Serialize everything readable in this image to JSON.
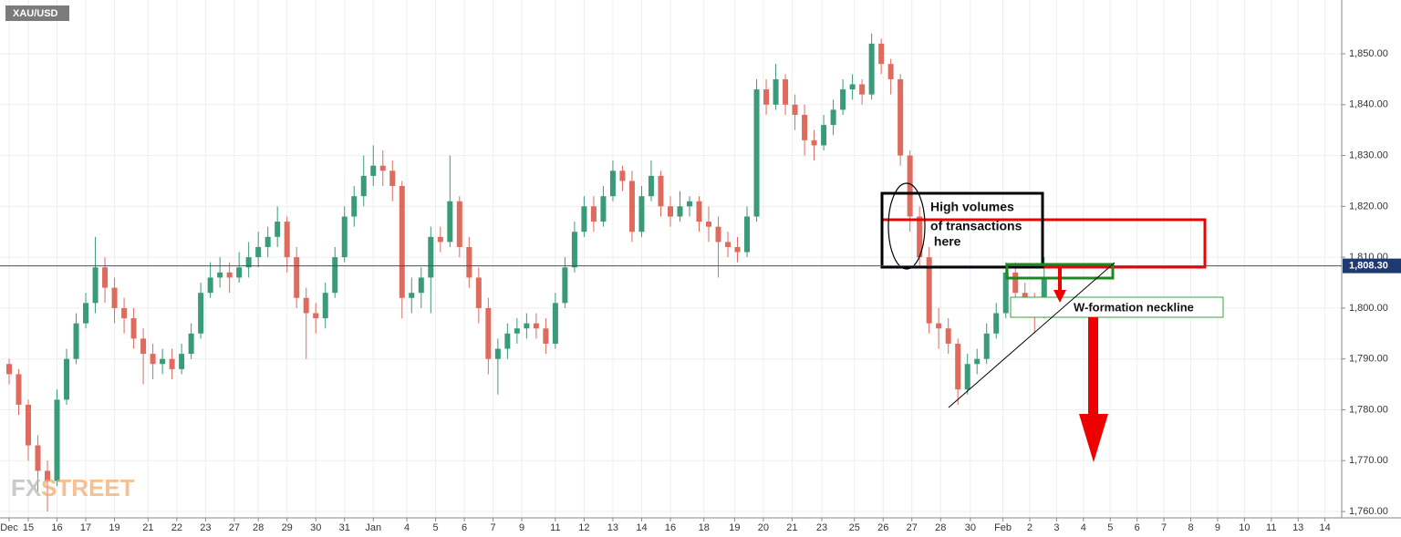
{
  "chart_data": {
    "type": "candlestick",
    "title": "XAU/USD",
    "watermark": [
      "FX",
      "STREET"
    ],
    "up_color": "#3a9b79",
    "down_color": "#de6b5e",
    "grid": true,
    "candles": [
      [
        1789,
        1790,
        1785,
        1787
      ],
      [
        1787,
        1788,
        1779,
        1781
      ],
      [
        1781,
        1782,
        1770,
        1773
      ],
      [
        1773,
        1775,
        1764,
        1768
      ],
      [
        1768,
        1770,
        1760,
        1766
      ],
      [
        1766,
        1784,
        1765,
        1782
      ],
      [
        1782,
        1792,
        1781,
        1790
      ],
      [
        1790,
        1799,
        1789,
        1797
      ],
      [
        1797,
        1803,
        1796,
        1801
      ],
      [
        1801,
        1814,
        1799,
        1808
      ],
      [
        1808,
        1810,
        1801,
        1804
      ],
      [
        1804,
        1806,
        1797,
        1800
      ],
      [
        1800,
        1802,
        1795,
        1798
      ],
      [
        1798,
        1800,
        1792,
        1794
      ],
      [
        1794,
        1796,
        1785,
        1791
      ],
      [
        1791,
        1793,
        1786,
        1789
      ],
      [
        1789,
        1792,
        1787,
        1790
      ],
      [
        1790,
        1792,
        1786,
        1788
      ],
      [
        1788,
        1793,
        1787,
        1791
      ],
      [
        1791,
        1797,
        1790,
        1795
      ],
      [
        1795,
        1805,
        1794,
        1803
      ],
      [
        1803,
        1809,
        1802,
        1806
      ],
      [
        1806,
        1810,
        1804,
        1807
      ],
      [
        1807,
        1809,
        1803,
        1806
      ],
      [
        1806,
        1811,
        1805,
        1808
      ],
      [
        1808,
        1813,
        1806,
        1810
      ],
      [
        1810,
        1815,
        1808,
        1812
      ],
      [
        1812,
        1816,
        1810,
        1814
      ],
      [
        1814,
        1820,
        1812,
        1817
      ],
      [
        1817,
        1818,
        1807,
        1810
      ],
      [
        1810,
        1812,
        1800,
        1802
      ],
      [
        1802,
        1804,
        1790,
        1799
      ],
      [
        1799,
        1801,
        1795,
        1798
      ],
      [
        1798,
        1805,
        1796,
        1803
      ],
      [
        1803,
        1812,
        1802,
        1810
      ],
      [
        1810,
        1820,
        1809,
        1818
      ],
      [
        1818,
        1824,
        1816,
        1822
      ],
      [
        1822,
        1830,
        1820,
        1826
      ],
      [
        1826,
        1832,
        1824,
        1828
      ],
      [
        1828,
        1831,
        1824,
        1827
      ],
      [
        1827,
        1829,
        1821,
        1824
      ],
      [
        1824,
        1825,
        1798,
        1802
      ],
      [
        1802,
        1806,
        1799,
        1803
      ],
      [
        1803,
        1808,
        1800,
        1806
      ],
      [
        1806,
        1816,
        1799,
        1814
      ],
      [
        1814,
        1816,
        1811,
        1813
      ],
      [
        1813,
        1830,
        1812,
        1821
      ],
      [
        1821,
        1822,
        1810,
        1812
      ],
      [
        1812,
        1814,
        1804,
        1806
      ],
      [
        1806,
        1808,
        1797,
        1800
      ],
      [
        1800,
        1802,
        1787,
        1790
      ],
      [
        1790,
        1794,
        1783,
        1792
      ],
      [
        1792,
        1797,
        1790,
        1795
      ],
      [
        1795,
        1798,
        1793,
        1796
      ],
      [
        1796,
        1799,
        1794,
        1797
      ],
      [
        1797,
        1799,
        1794,
        1796
      ],
      [
        1796,
        1798,
        1791,
        1793
      ],
      [
        1793,
        1803,
        1792,
        1801
      ],
      [
        1801,
        1810,
        1800,
        1808
      ],
      [
        1808,
        1817,
        1807,
        1815
      ],
      [
        1815,
        1822,
        1814,
        1820
      ],
      [
        1820,
        1822,
        1815,
        1817
      ],
      [
        1817,
        1824,
        1816,
        1822
      ],
      [
        1822,
        1829,
        1821,
        1827
      ],
      [
        1827,
        1828,
        1823,
        1825
      ],
      [
        1825,
        1827,
        1813,
        1815
      ],
      [
        1815,
        1824,
        1814,
        1822
      ],
      [
        1822,
        1829,
        1821,
        1826
      ],
      [
        1826,
        1827,
        1818,
        1820
      ],
      [
        1820,
        1822,
        1816,
        1818
      ],
      [
        1818,
        1823,
        1817,
        1820
      ],
      [
        1820,
        1822,
        1818,
        1821
      ],
      [
        1821,
        1822,
        1815,
        1817
      ],
      [
        1817,
        1820,
        1813,
        1816
      ],
      [
        1816,
        1818,
        1806,
        1813
      ],
      [
        1813,
        1815,
        1810,
        1812
      ],
      [
        1812,
        1814,
        1809,
        1811
      ],
      [
        1811,
        1820,
        1810,
        1818
      ],
      [
        1818,
        1845,
        1817,
        1843
      ],
      [
        1843,
        1845,
        1838,
        1840
      ],
      [
        1840,
        1848,
        1839,
        1845
      ],
      [
        1845,
        1846,
        1838,
        1840
      ],
      [
        1840,
        1842,
        1835,
        1838
      ],
      [
        1838,
        1840,
        1830,
        1833
      ],
      [
        1833,
        1835,
        1829,
        1832
      ],
      [
        1832,
        1838,
        1831,
        1836
      ],
      [
        1836,
        1841,
        1834,
        1839
      ],
      [
        1839,
        1845,
        1838,
        1843
      ],
      [
        1843,
        1846,
        1841,
        1844
      ],
      [
        1844,
        1845,
        1840,
        1842
      ],
      [
        1842,
        1854,
        1841,
        1852
      ],
      [
        1852,
        1853,
        1846,
        1848
      ],
      [
        1848,
        1849,
        1842,
        1845
      ],
      [
        1845,
        1846,
        1828,
        1830
      ],
      [
        1830,
        1831,
        1815,
        1818
      ],
      [
        1818,
        1820,
        1808,
        1810
      ],
      [
        1810,
        1812,
        1795,
        1797
      ],
      [
        1797,
        1800,
        1792,
        1796
      ],
      [
        1796,
        1798,
        1791,
        1793
      ],
      [
        1793,
        1794,
        1781,
        1784
      ],
      [
        1784,
        1791,
        1783,
        1789
      ],
      [
        1789,
        1792,
        1787,
        1790
      ],
      [
        1790,
        1797,
        1789,
        1795
      ],
      [
        1795,
        1801,
        1794,
        1799
      ],
      [
        1799,
        1809,
        1798,
        1807
      ],
      [
        1807,
        1809,
        1801,
        1803
      ],
      [
        1803,
        1805,
        1799,
        1801
      ],
      [
        1801,
        1803,
        1795,
        1799
      ],
      [
        1799,
        1810,
        1798,
        1806
      ]
    ],
    "xlim": [
      -0.95,
      139.05
    ],
    "xticks": [
      {
        "value": 0,
        "label": "Dec"
      },
      {
        "value": 2,
        "label": "15"
      },
      {
        "value": 5,
        "label": "16"
      },
      {
        "value": 8,
        "label": "17"
      },
      {
        "value": 11,
        "label": "19"
      },
      {
        "value": 14.5,
        "label": "21"
      },
      {
        "value": 17.5,
        "label": "22"
      },
      {
        "value": 20.5,
        "label": "23"
      },
      {
        "value": 23.5,
        "label": "27"
      },
      {
        "value": 26,
        "label": "28"
      },
      {
        "value": 29,
        "label": "29"
      },
      {
        "value": 32,
        "label": "30"
      },
      {
        "value": 35,
        "label": "31"
      },
      {
        "value": 38,
        "label": "Jan"
      },
      {
        "value": 41.5,
        "label": "4"
      },
      {
        "value": 44.5,
        "label": "5"
      },
      {
        "value": 47.5,
        "label": "6"
      },
      {
        "value": 50.5,
        "label": "7"
      },
      {
        "value": 53.5,
        "label": "9"
      },
      {
        "value": 57,
        "label": "11"
      },
      {
        "value": 60,
        "label": "12"
      },
      {
        "value": 63,
        "label": "13"
      },
      {
        "value": 66,
        "label": "14"
      },
      {
        "value": 69,
        "label": "16"
      },
      {
        "value": 72.5,
        "label": "18"
      },
      {
        "value": 75.7,
        "label": "19"
      },
      {
        "value": 78.7,
        "label": "20"
      },
      {
        "value": 81.7,
        "label": "21"
      },
      {
        "value": 84.8,
        "label": "23"
      },
      {
        "value": 88.2,
        "label": "25"
      },
      {
        "value": 91.2,
        "label": "26"
      },
      {
        "value": 94.2,
        "label": "27"
      },
      {
        "value": 97.2,
        "label": "28"
      },
      {
        "value": 100.3,
        "label": "30"
      },
      {
        "value": 103.7,
        "label": "Feb"
      },
      {
        "value": 106.5,
        "label": "2"
      },
      {
        "value": 109.3,
        "label": "3"
      },
      {
        "value": 112.1,
        "label": "4"
      },
      {
        "value": 114.9,
        "label": "5"
      },
      {
        "value": 117.7,
        "label": "6"
      },
      {
        "value": 120.5,
        "label": "7"
      },
      {
        "value": 123.3,
        "label": "8"
      },
      {
        "value": 126.1,
        "label": "9"
      },
      {
        "value": 128.9,
        "label": "10"
      },
      {
        "value": 131.7,
        "label": "11"
      },
      {
        "value": 134.5,
        "label": "13"
      },
      {
        "value": 137.3,
        "label": "14"
      }
    ],
    "ylim": [
      1758.75,
      1860.58
    ],
    "yticks": [
      {
        "value": 1760,
        "label": "1,760.00"
      },
      {
        "value": 1770,
        "label": "1,770.00"
      },
      {
        "value": 1780,
        "label": "1,780.00"
      },
      {
        "value": 1790,
        "label": "1,790.00"
      },
      {
        "value": 1800,
        "label": "1,800.00"
      },
      {
        "value": 1810,
        "label": "1,810.00"
      },
      {
        "value": 1820,
        "label": "1,820.00"
      },
      {
        "value": 1830,
        "label": "1,830.00"
      },
      {
        "value": 1840,
        "label": "1,840.00"
      },
      {
        "value": 1850,
        "label": "1,850.00"
      }
    ],
    "last_price": {
      "value": 1808.3,
      "label": "1,808.30"
    },
    "annotations": [
      "High volumes",
      "of transactions",
      " here",
      "W-formation neckline"
    ]
  }
}
